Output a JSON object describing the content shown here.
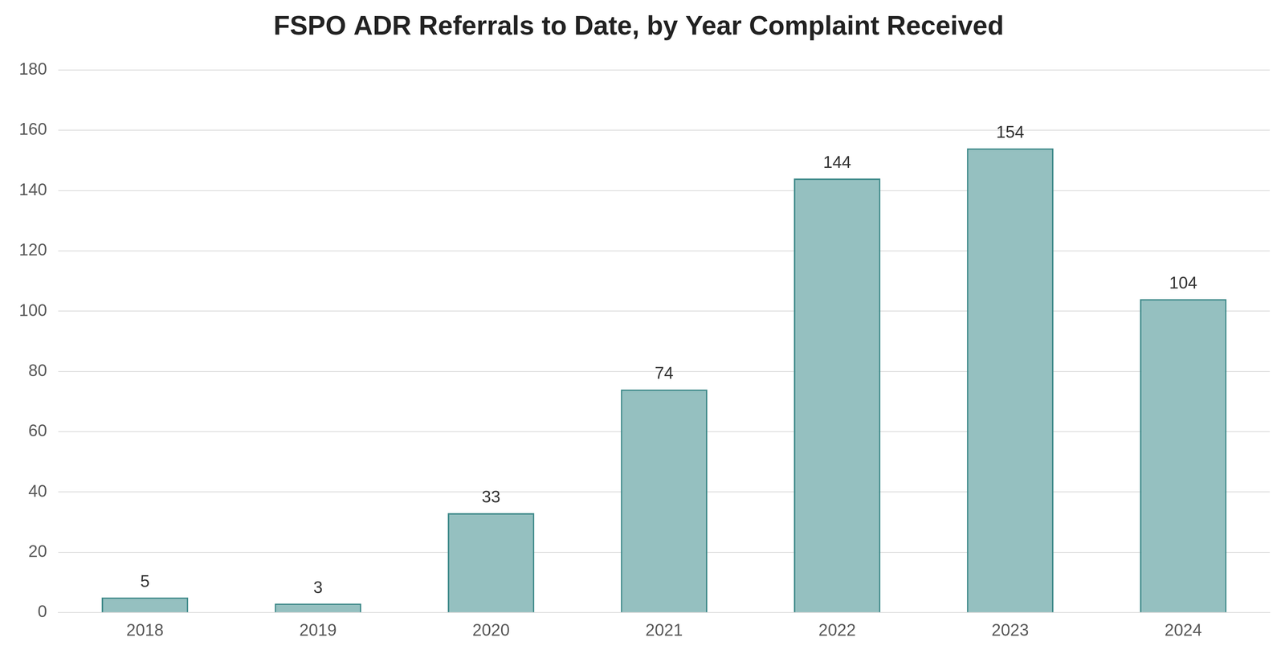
{
  "chart_data": {
    "type": "bar",
    "title": "FSPO ADR Referrals to Date, by Year Complaint Received",
    "categories": [
      "2018",
      "2019",
      "2020",
      "2021",
      "2022",
      "2023",
      "2024"
    ],
    "values": [
      5,
      3,
      33,
      74,
      144,
      154,
      104
    ],
    "color": "#95c0c0",
    "ylim": [
      0,
      180
    ],
    "yticks": [
      0,
      20,
      40,
      60,
      80,
      100,
      120,
      140,
      160,
      180
    ],
    "grid": true,
    "data_labels": true
  }
}
